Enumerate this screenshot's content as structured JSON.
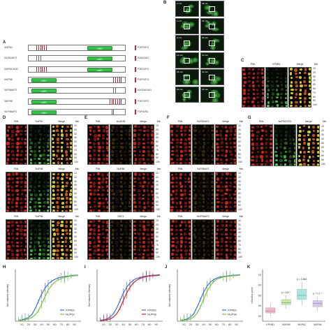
{
  "panels": {
    "A": "A",
    "B": "B",
    "C": "C",
    "D": "D",
    "E": "E",
    "F": "F",
    "G": "G",
    "H": "H",
    "I": "I",
    "J": "J",
    "K": "K"
  },
  "constructs": [
    {
      "name": "NUP62",
      "seq": "F3/FG/FG",
      "gfp": "mNG",
      "gfp_side": "right"
    },
    {
      "name": "NLP62ΔFG",
      "seq": "AXA/GAG",
      "gfp": "mNG",
      "gfp_side": "right"
    },
    {
      "name": "NUP62-N1D",
      "seq": "F3/FG/FG",
      "gfp": "mNG",
      "gfp_side": "right"
    },
    {
      "name": "NUP58",
      "seq": "F3/FG/FG",
      "gfp": "mNG",
      "gfp_side": "left"
    },
    {
      "name": "NLP58ΔFG",
      "seq": "AX/GAG/AG",
      "gfp": "mNG",
      "gfp_side": "left"
    },
    {
      "name": "NUP98",
      "seq": "F3/FG/FG",
      "gfp": "mNG",
      "gfp_side": "left"
    },
    {
      "name": "NLF98ΔFG",
      "seq": "F3/FA/FA",
      "gfp": "mNG",
      "gfp_side": "left"
    }
  ],
  "timelapse_left": [
    "2 min",
    "4 min",
    "6 min",
    "12 min",
    "18 min",
    "20 min"
  ],
  "timelapse_right": [
    "28 min",
    "32 min",
    "36 min",
    "40 min",
    "42 min",
    "44 min"
  ],
  "minutes": [
    "10",
    "20",
    "30",
    "40",
    "50",
    "60",
    "70",
    "80",
    "90",
    "100"
  ],
  "min_header": "Min",
  "pml": "PML",
  "merge": "Merge",
  "grids": {
    "C": {
      "mid": "KPNB1"
    },
    "D": [
      {
        "mid": "NUP62"
      },
      {
        "mid": "NUP58"
      },
      {
        "mid": "NUP98"
      }
    ],
    "E": [
      {
        "mid": "ALADIN"
      },
      {
        "mid": "NUP85"
      },
      {
        "mid": "NDC1"
      }
    ],
    "F": [
      {
        "mid": "NLP62ΔFG"
      },
      {
        "mid": "NLP58ΔFG"
      },
      {
        "mid": "NUP98ΔFG"
      }
    ],
    "G": {
      "mid": "NUP62 NTD"
    }
  },
  "colors": {
    "red": "#d22a24",
    "green": "#3fbf3a",
    "yellow": "#e0d020",
    "kpnb1": "#3a6fd8",
    "nup": "#7bc043",
    "nup58": "#c0283a"
  },
  "chart_data": [
    {
      "type": "line",
      "panel": "H",
      "ylabel": "Normalized intensity",
      "xticks": [
        "10",
        "20",
        "30",
        "40",
        "50",
        "60",
        "70",
        "80",
        "90"
      ],
      "x": [
        5,
        10,
        15,
        20,
        25,
        30,
        35,
        40,
        45,
        50,
        55,
        60,
        65,
        70,
        75,
        80,
        85,
        90,
        95
      ],
      "ylim": [
        0,
        1.1
      ],
      "series": [
        {
          "name": "KPNB1",
          "values": [
            0.02,
            0.03,
            0.05,
            0.08,
            0.14,
            0.26,
            0.42,
            0.58,
            0.7,
            0.79,
            0.85,
            0.89,
            0.92,
            0.94,
            0.95,
            0.96,
            0.97,
            0.98,
            0.98
          ]
        },
        {
          "name": "NUP62",
          "values": [
            0.01,
            0.02,
            0.03,
            0.05,
            0.08,
            0.13,
            0.22,
            0.36,
            0.52,
            0.66,
            0.76,
            0.83,
            0.88,
            0.91,
            0.93,
            0.95,
            0.96,
            0.97,
            0.97
          ]
        }
      ]
    },
    {
      "type": "line",
      "panel": "I",
      "ylabel": "Normalized intensity",
      "xticks": [
        "10",
        "20",
        "30",
        "40",
        "50",
        "60",
        "70",
        "80",
        "90"
      ],
      "x": [
        5,
        10,
        15,
        20,
        25,
        30,
        35,
        40,
        45,
        50,
        55,
        60,
        65,
        70,
        75,
        80,
        85,
        90,
        95
      ],
      "ylim": [
        0,
        1.1
      ],
      "series": [
        {
          "name": "KPNB1",
          "values": [
            0.02,
            0.03,
            0.05,
            0.09,
            0.16,
            0.28,
            0.44,
            0.6,
            0.72,
            0.81,
            0.87,
            0.91,
            0.93,
            0.95,
            0.96,
            0.97,
            0.98,
            0.98,
            0.99
          ]
        },
        {
          "name": "NUP58",
          "values": [
            0.01,
            0.02,
            0.03,
            0.05,
            0.09,
            0.16,
            0.28,
            0.44,
            0.6,
            0.72,
            0.81,
            0.87,
            0.91,
            0.93,
            0.95,
            0.96,
            0.97,
            0.97,
            0.98
          ]
        }
      ]
    },
    {
      "type": "line",
      "panel": "J",
      "ylabel": "Normalized intensity",
      "xticks": [
        "10",
        "20",
        "30",
        "40",
        "50",
        "60",
        "70",
        "80",
        "90"
      ],
      "x": [
        5,
        10,
        15,
        20,
        25,
        30,
        35,
        40,
        45,
        50,
        55,
        60,
        65,
        70,
        75,
        80,
        85,
        90,
        95
      ],
      "ylim": [
        0,
        1.1
      ],
      "series": [
        {
          "name": "KPNB1",
          "values": [
            0.02,
            0.03,
            0.05,
            0.09,
            0.16,
            0.3,
            0.46,
            0.62,
            0.74,
            0.83,
            0.88,
            0.92,
            0.94,
            0.95,
            0.96,
            0.97,
            0.98,
            0.98,
            0.99
          ]
        },
        {
          "name": "NUP98",
          "values": [
            0.01,
            0.02,
            0.03,
            0.05,
            0.09,
            0.17,
            0.3,
            0.47,
            0.63,
            0.75,
            0.84,
            0.89,
            0.92,
            0.94,
            0.95,
            0.96,
            0.97,
            0.97,
            0.98
          ]
        }
      ]
    },
    {
      "type": "box",
      "panel": "K",
      "ylabel": "Inflection point",
      "ylim": [
        25,
        75
      ],
      "yticks": [
        "30",
        "40",
        "50",
        "60",
        "70"
      ],
      "categories": [
        "KPNB1",
        "NUP58",
        "NUP62",
        "NUP98"
      ],
      "boxes": [
        {
          "q1": 33,
          "median": 35,
          "q3": 38,
          "min": 30,
          "max": 42,
          "color": "#f2b8c6"
        },
        {
          "q1": 41,
          "median": 43,
          "q3": 46,
          "min": 37,
          "max": 50,
          "color": "#c6e8a8"
        },
        {
          "q1": 46,
          "median": 50,
          "q3": 56,
          "min": 40,
          "max": 63,
          "color": "#a8e8dc"
        },
        {
          "q1": 39,
          "median": 42,
          "q3": 45,
          "min": 35,
          "max": 49,
          "color": "#d9c8ee"
        }
      ],
      "annotations": [
        "p = 6.8⁻⁵",
        "p = 0.862",
        "p = 0.2⁻⁴"
      ]
    }
  ]
}
